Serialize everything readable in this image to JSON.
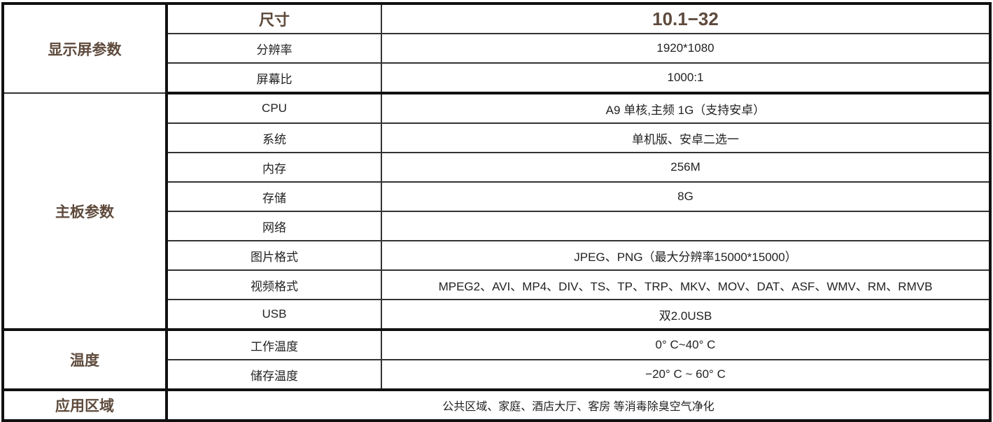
{
  "groups": {
    "display": "显示屏参数",
    "board": "主板参数",
    "temperature": "温度",
    "application": "应用区域"
  },
  "header": {
    "label": "尺寸",
    "value": "10.1−32"
  },
  "display_rows": [
    {
      "label": "分辨率",
      "value": "1920*1080"
    },
    {
      "label": "屏幕比",
      "value": "1000:1"
    }
  ],
  "board_rows": [
    {
      "label": "CPU",
      "value": "A9 单核,主频 1G（支持安卓）"
    },
    {
      "label": "系统",
      "value": "单机版、安卓二选一"
    },
    {
      "label": "内存",
      "value": "256M"
    },
    {
      "label": "存储",
      "value": "8G"
    },
    {
      "label": "网络",
      "value": ""
    },
    {
      "label": "图片格式",
      "value": "JPEG、PNG（最大分辨率15000*15000）"
    },
    {
      "label": "视频格式",
      "value": "MPEG2、AVI、MP4、DIV、TS、TP、TRP、MKV、MOV、DAT、ASF、WMV、RM、RMVB"
    },
    {
      "label": "USB",
      "value": "双2.0USB"
    }
  ],
  "temperature_rows": [
    {
      "label": "工作温度",
      "value": "0° C~40° C"
    },
    {
      "label": "储存温度",
      "value": "−20° C ~ 60° C"
    }
  ],
  "application_value": "公共区域、家庭、酒店大厅、客房 等消毒除臭空气净化"
}
